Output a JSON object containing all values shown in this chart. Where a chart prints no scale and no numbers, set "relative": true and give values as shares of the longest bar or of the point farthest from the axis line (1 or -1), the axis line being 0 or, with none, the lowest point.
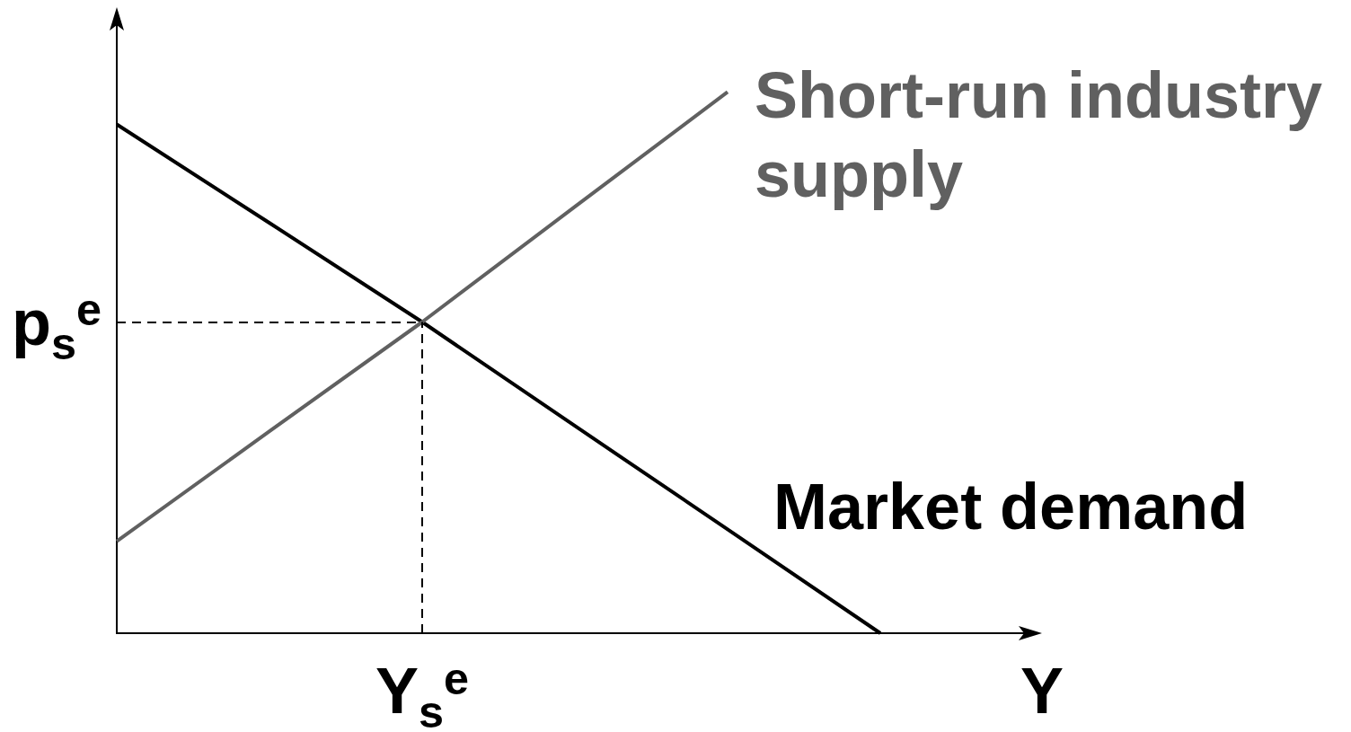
{
  "chart_data": {
    "type": "line",
    "relative": true,
    "xlabel": "Y",
    "marker": "none",
    "line_style": "solid",
    "categories": [
      null,
      null,
      null,
      null,
      null,
      null,
      null
    ],
    "series": [
      {
        "name": "Market demand",
        "color": "#000000",
        "values": [
          0.94,
          0.758,
          0.575,
          0.383,
          0.192,
          0,
          null
        ]
      },
      {
        "name": "Short-run industry supply",
        "color": "#606060",
        "values": [
          0.17,
          0.373,
          0.575,
          0.788,
          1,
          null,
          null
        ]
      }
    ],
    "ref_lines": [
      {
        "axis": "y",
        "value": 0.575,
        "label": "p$_{s}$$^{e}$",
        "line_style": "dashed",
        "color": "#000000"
      }
    ],
    "annotations": [
      "Y$_{s}$$^{e}$"
    ]
  }
}
